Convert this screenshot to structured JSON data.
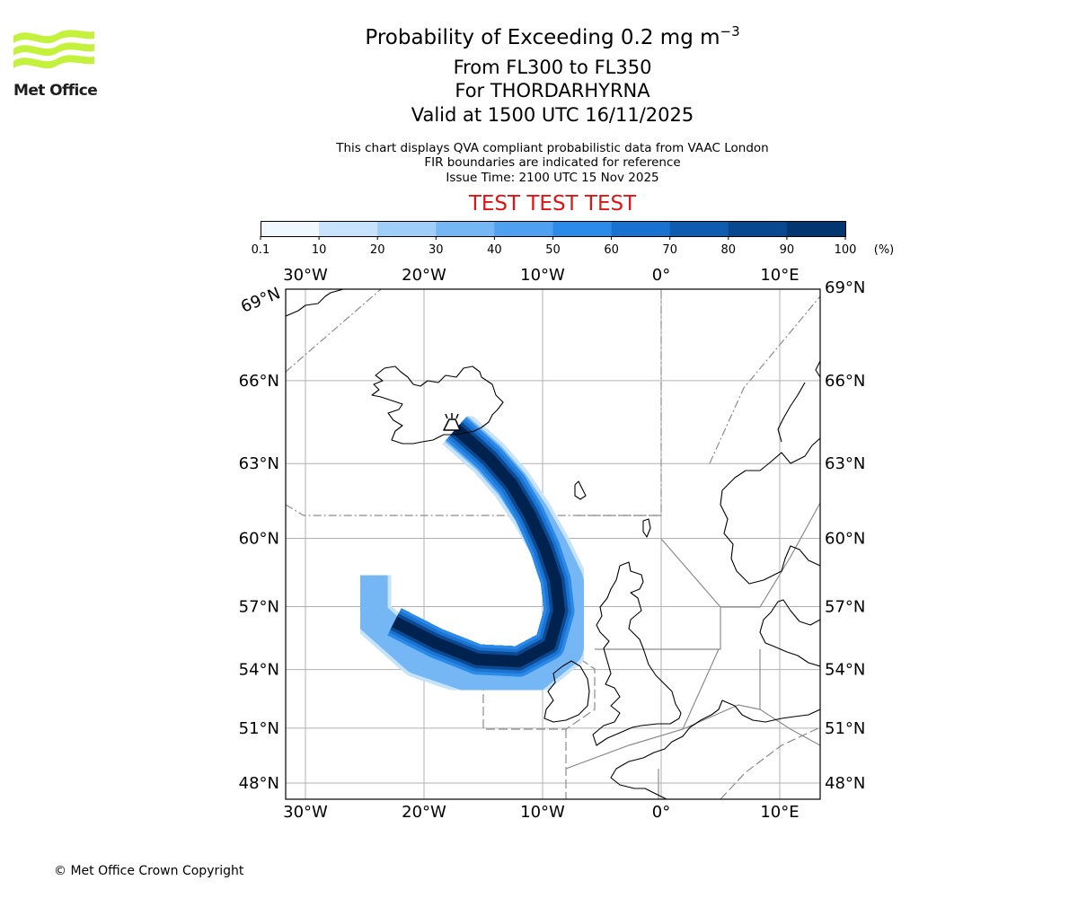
{
  "title": {
    "main": "Probability of Exceeding 0.2 mg m",
    "superscript": "−3",
    "lines": [
      "From FL300 to FL350",
      "For THORDARHYRNA",
      "Valid at 1500 UTC 16/11/2025"
    ]
  },
  "subtitle": {
    "lines": [
      "This chart displays QVA compliant probabilistic data from VAAC London",
      "FIR boundaries are indicated for reference",
      "Issue Time: 2100 UTC 15 Nov 2025"
    ]
  },
  "banner": "TEST TEST TEST",
  "logo": {
    "text": "Met Office",
    "icon": "met-office-waves-logo",
    "color": "#c4f23c"
  },
  "colorbar": {
    "tick_labels": [
      "0.1",
      "10",
      "20",
      "30",
      "40",
      "50",
      "60",
      "70",
      "80",
      "90",
      "100"
    ],
    "unit_label": "(%)",
    "colors": [
      "#f0f7fe",
      "#c6e3fb",
      "#9fcef8",
      "#75b6f4",
      "#4fa0ef",
      "#2c8ae8",
      "#1a72d0",
      "#0d5cb0",
      "#074890",
      "#033570",
      "#012350"
    ]
  },
  "map": {
    "lon_labels": [
      "30°W",
      "20°W",
      "10°W",
      "0°",
      "10°E"
    ],
    "lon_values": [
      -30,
      -20,
      -10,
      0,
      10
    ],
    "lat_labels": [
      "69°N",
      "66°N",
      "63°N",
      "60°N",
      "57°N",
      "54°N",
      "51°N",
      "48°N"
    ],
    "lat_values": [
      69,
      66,
      63,
      60,
      57,
      54,
      51,
      48
    ],
    "corner_label": "69°N",
    "volcano": {
      "name": "THORDARHYRNA",
      "icon": "volcano-icon",
      "lon": -17.6,
      "lat": 64.4
    },
    "plume_path_lonlat": [
      [
        -17.3,
        64.3
      ],
      [
        -16.0,
        63.8
      ],
      [
        -14.5,
        63.2
      ],
      [
        -12.6,
        62.2
      ],
      [
        -11.1,
        61.0
      ],
      [
        -9.8,
        59.6
      ],
      [
        -8.9,
        58.2
      ],
      [
        -8.6,
        56.8
      ],
      [
        -9.4,
        55.2
      ],
      [
        -12.0,
        54.4
      ],
      [
        -15.5,
        54.5
      ],
      [
        -19.0,
        55.3
      ],
      [
        -22.5,
        56.3
      ]
    ],
    "plume_halo_lonlat": [
      [
        -17.3,
        64.3
      ],
      [
        -16.0,
        63.8
      ],
      [
        -14.5,
        63.2
      ],
      [
        -12.6,
        62.2
      ],
      [
        -10.9,
        61.0
      ],
      [
        -9.3,
        59.6
      ],
      [
        -8.0,
        58.2
      ],
      [
        -7.4,
        56.8
      ],
      [
        -8.0,
        55.0
      ],
      [
        -11.0,
        53.6
      ],
      [
        -15.5,
        53.6
      ],
      [
        -20.5,
        54.6
      ],
      [
        -24.5,
        56.6
      ],
      [
        -24.5,
        58.4
      ]
    ]
  },
  "copyright": "© Met Office Crown Copyright"
}
